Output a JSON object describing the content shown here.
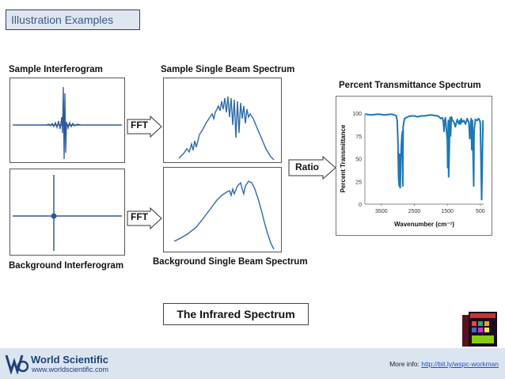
{
  "header": {
    "title": "Illustration Examples"
  },
  "labels": {
    "sample_interferogram": "Sample Interferogram",
    "sample_single_beam": "Sample Single Beam Spectrum",
    "percent_transmittance": "Percent Transmittance Spectrum",
    "background_interferogram": "Background Interferogram",
    "background_single_beam": "Background Single Beam Spectrum",
    "fft_top": "FFT",
    "fft_bottom": "FFT",
    "ratio": "Ratio"
  },
  "callout": {
    "text": "The Infrared Spectrum"
  },
  "chart_data": {
    "type": "line",
    "title": "Percent Transmittance Spectrum",
    "xlabel": "Wavenumber (cm⁻¹)",
    "ylabel": "Percent Transmittance",
    "xlim": [
      4000,
      400
    ],
    "ylim": [
      0,
      100
    ],
    "xticks": [
      "3500",
      "2500",
      "1500",
      "500"
    ],
    "yticks": [
      "0",
      "25",
      "50",
      "75",
      "100"
    ],
    "series": [
      {
        "color": "#1f77b4",
        "x": [
          3980,
          3800,
          3600,
          3400,
          3200,
          3100,
          3050,
          3020,
          3000,
          2980,
          2960,
          2945,
          2930,
          2915,
          2900,
          2880,
          2860,
          2850,
          2840,
          2800,
          2700,
          2600,
          2500,
          2400,
          2300,
          2200,
          2000,
          1800,
          1750,
          1700,
          1650,
          1620,
          1600,
          1580,
          1560,
          1500,
          1490,
          1470,
          1460,
          1420,
          1400,
          1380,
          1340,
          1300,
          1260,
          1200,
          1150,
          1120,
          1100,
          1080,
          1050,
          1000,
          950,
          900,
          850,
          820,
          780,
          760,
          740,
          700,
          690,
          650,
          600,
          550,
          500,
          460,
          420
        ],
        "y": [
          99,
          98,
          99,
          98,
          99,
          98,
          97,
          92,
          70,
          30,
          20,
          55,
          18,
          40,
          60,
          75,
          80,
          20,
          85,
          94,
          96,
          97,
          97,
          96,
          97,
          97,
          98,
          97,
          96,
          94,
          95,
          90,
          80,
          92,
          95,
          70,
          40,
          92,
          30,
          95,
          75,
          96,
          92,
          90,
          85,
          93,
          88,
          92,
          88,
          94,
          90,
          92,
          88,
          94,
          90,
          72,
          94,
          60,
          92,
          20,
          80,
          93,
          92,
          94,
          90,
          5,
          92
        ]
      }
    ]
  },
  "footer": {
    "brand": "World Scientific",
    "url": "www.worldscientific.com",
    "more_info_prefix": "More info: ",
    "more_info_link": "http://bit.ly/wspc-workman"
  }
}
